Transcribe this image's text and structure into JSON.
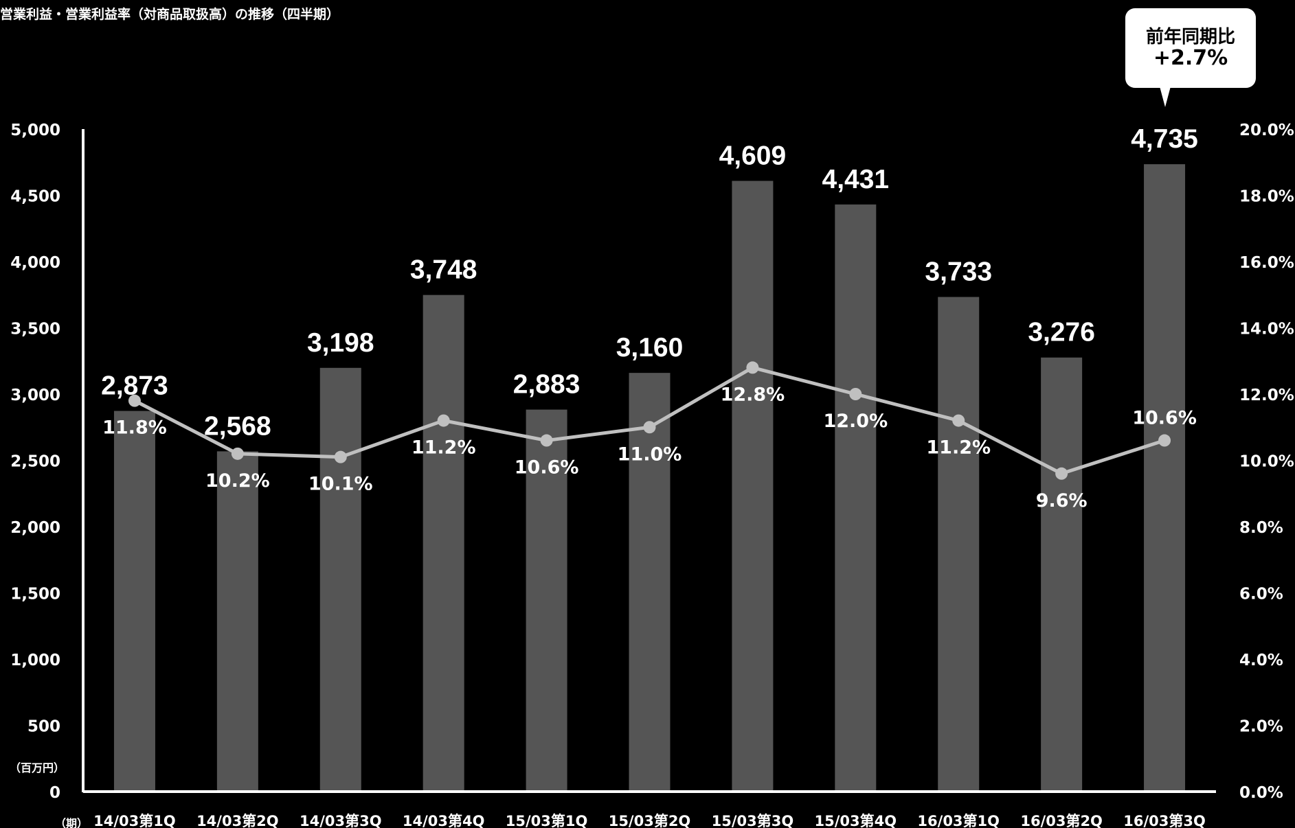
{
  "title": "営業利益・営業利益率（対商品取扱高）の推移（四半期）",
  "callout": {
    "line1": "前年同期比",
    "line2": "+2.7%"
  },
  "chart_data": {
    "type": "bar",
    "title": "営業利益・営業利益率（対商品取扱高）の推移（四半期）",
    "categories": [
      "14/03第1Q",
      "14/03第2Q",
      "14/03第3Q",
      "14/03第4Q",
      "15/03第1Q",
      "15/03第2Q",
      "15/03第3Q",
      "15/03第4Q",
      "16/03第1Q",
      "16/03第2Q",
      "16/03第3Q"
    ],
    "series": [
      {
        "type": "bar",
        "axis": "left",
        "values": [
          2873,
          2568,
          3198,
          3748,
          2883,
          3160,
          4609,
          4431,
          3733,
          3276,
          4735
        ],
        "labels": [
          "2,873",
          "2,568",
          "3,198",
          "3,748",
          "2,883",
          "3,160",
          "4,609",
          "4,431",
          "3,733",
          "3,276",
          "4,735"
        ]
      },
      {
        "type": "line",
        "axis": "right",
        "values": [
          11.8,
          10.2,
          10.1,
          11.2,
          10.6,
          11.0,
          12.8,
          12.0,
          11.2,
          9.6,
          10.6
        ],
        "labels": [
          "11.8%",
          "10.2%",
          "10.1%",
          "11.2%",
          "10.6%",
          "11.0%",
          "12.8%",
          "12.0%",
          "11.2%",
          "9.6%",
          "10.6%"
        ]
      }
    ],
    "y_left": {
      "range": [
        0,
        5000
      ],
      "ticks": [
        "0",
        "500",
        "1,000",
        "1,500",
        "2,000",
        "2,500",
        "3,000",
        "3,500",
        "4,000",
        "4,500",
        "5,000"
      ],
      "unit": "（百万円）"
    },
    "y_right": {
      "range": [
        0,
        20
      ],
      "ticks": [
        "0.0%",
        "2.0%",
        "4.0%",
        "6.0%",
        "8.0%",
        "10.0%",
        "12.0%",
        "14.0%",
        "16.0%",
        "18.0%",
        "20.0%"
      ]
    },
    "x_unit": "（期）",
    "colors": {
      "background": "#000000",
      "bar": "#555555",
      "line": "#c0c0c0",
      "axis": "#ffffff",
      "text": "#ffffff"
    },
    "grid": false,
    "legend": "none"
  }
}
